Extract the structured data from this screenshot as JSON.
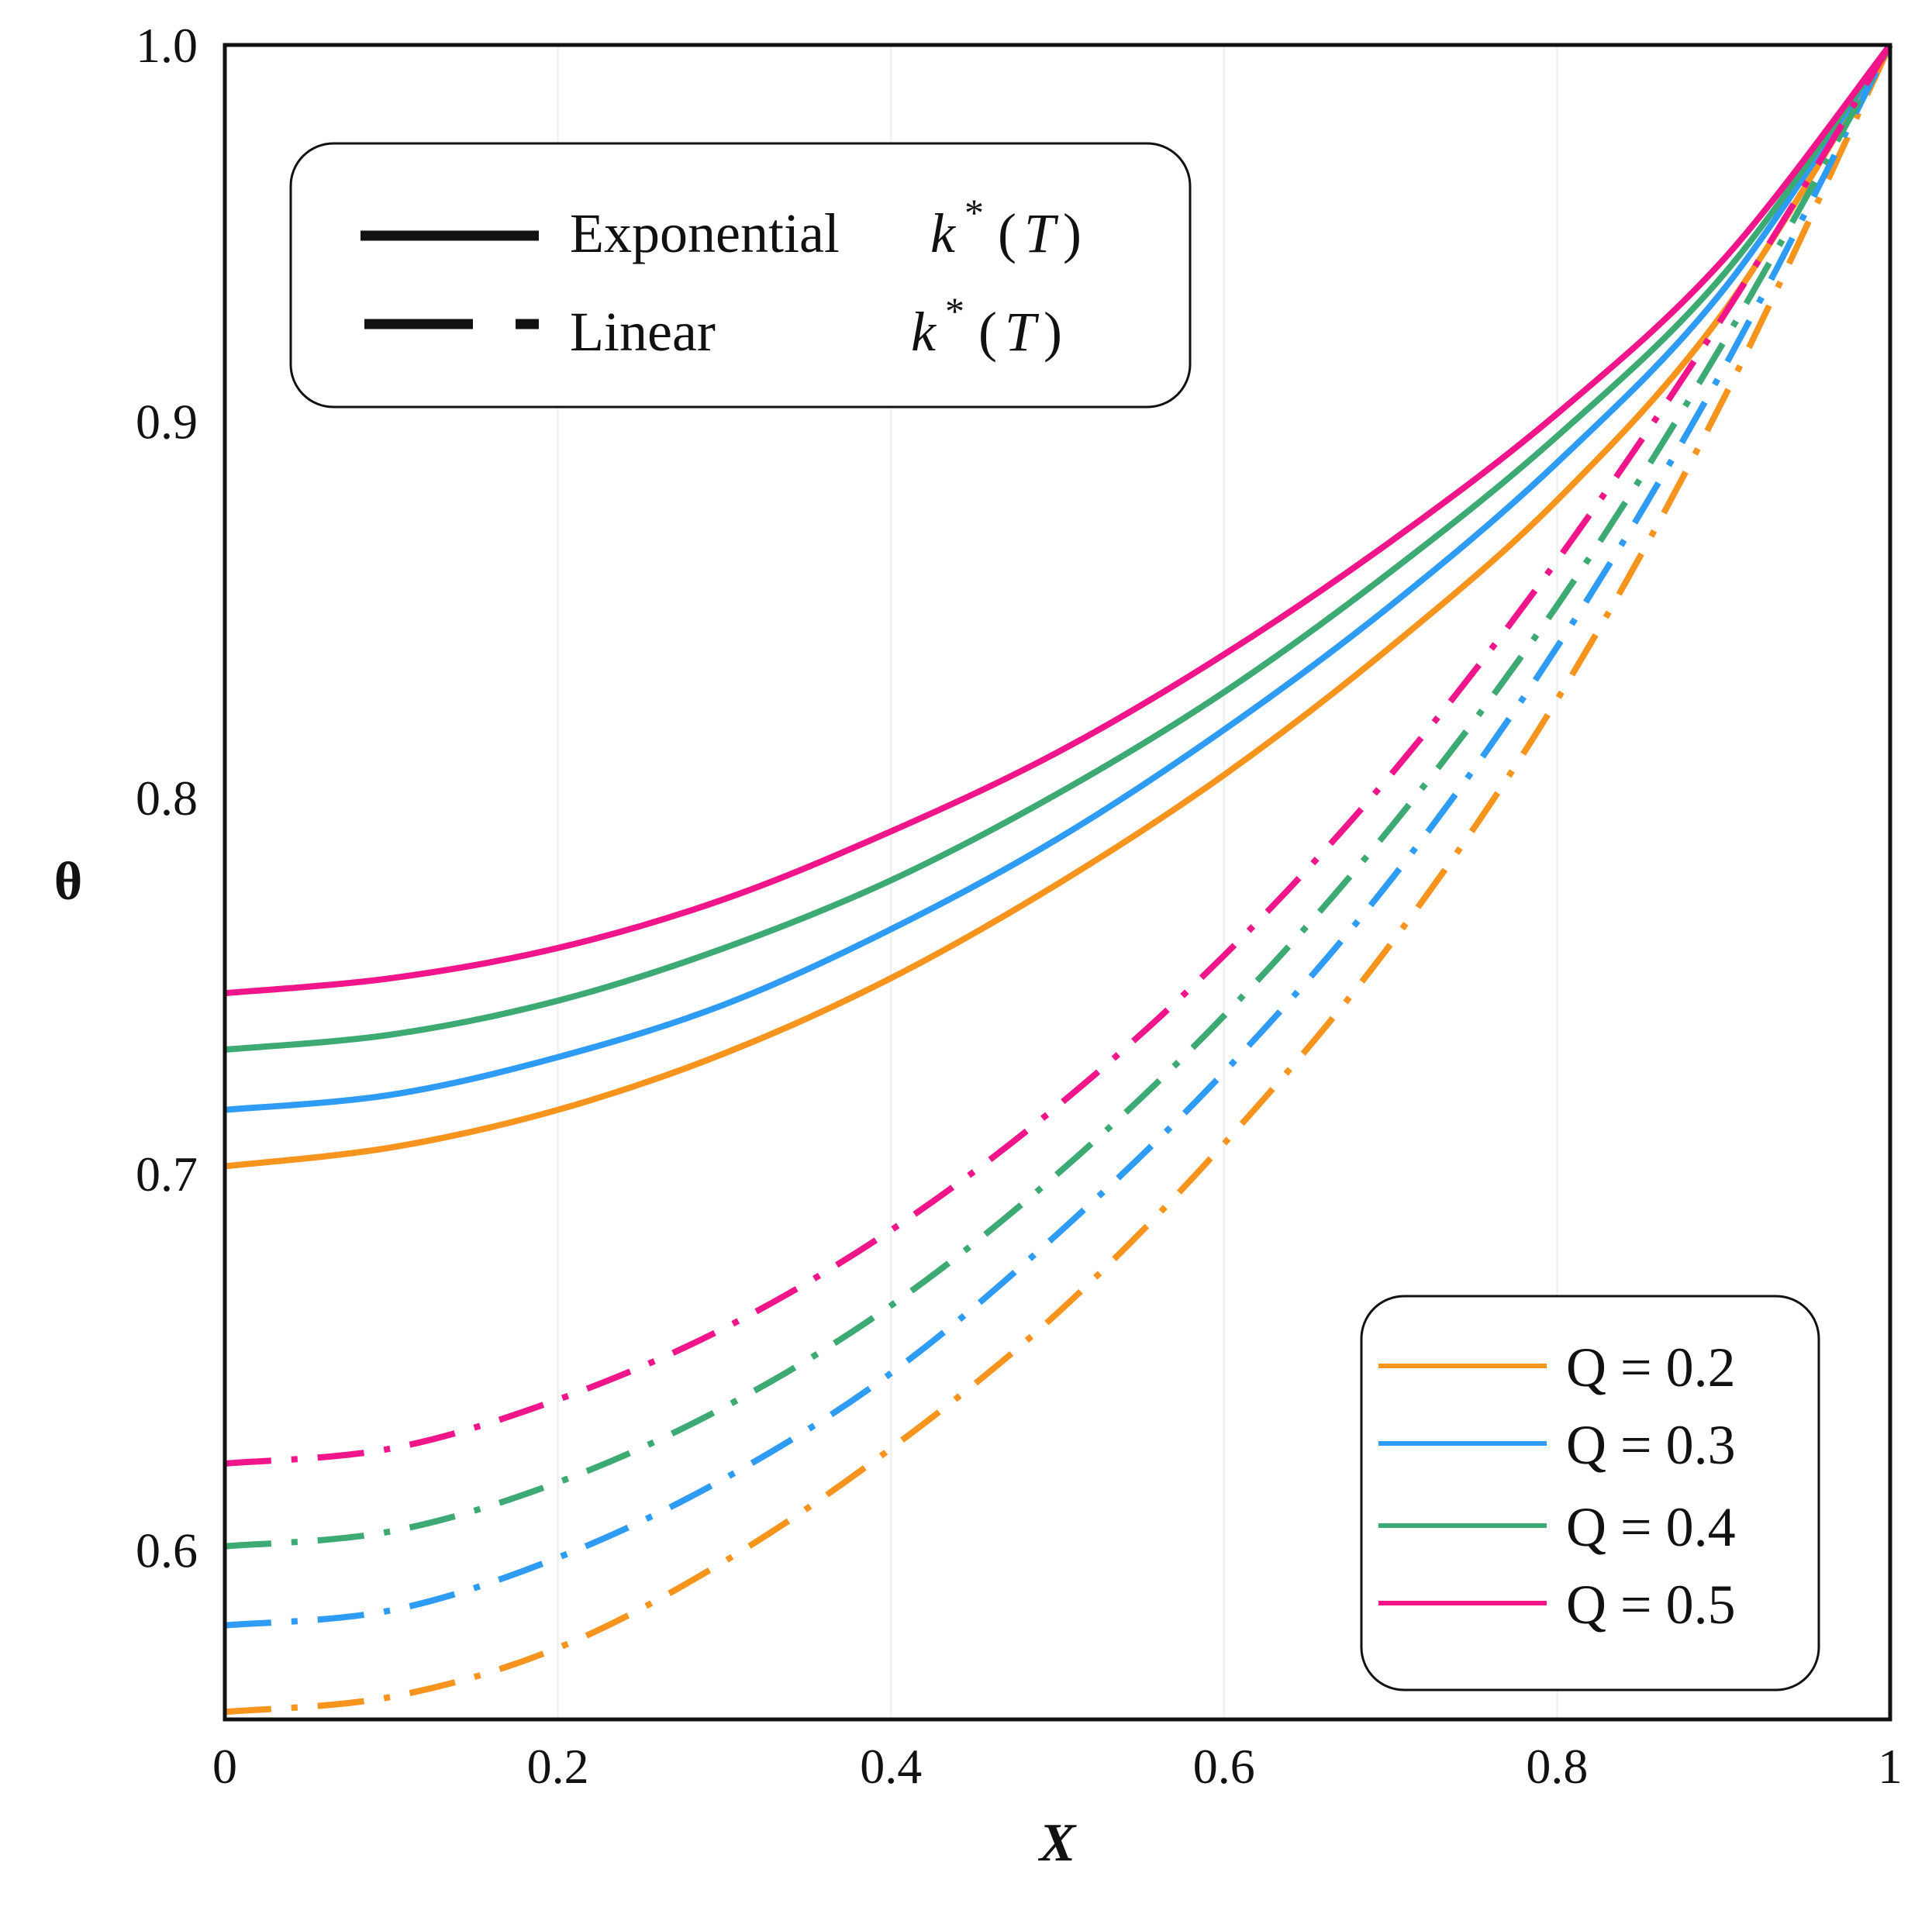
{
  "chart_data": {
    "type": "line",
    "xlabel": "X",
    "ylabel": "θ",
    "xlim": [
      0,
      1
    ],
    "ylim": [
      0.555,
      1.0
    ],
    "x_ticks": [
      0,
      0.2,
      0.4,
      0.6,
      0.8,
      1
    ],
    "x_tick_labels": [
      "0",
      "0.2",
      "0.4",
      "0.6",
      "0.8",
      "1"
    ],
    "y_ticks": [
      0.6,
      0.7,
      0.8,
      0.9,
      1.0
    ],
    "y_tick_labels": [
      "0.6",
      "0.7",
      "0.8",
      "0.9",
      "1.0"
    ],
    "style_legend": {
      "position": "top-left",
      "entries": [
        {
          "label": "Exponential",
          "math": "k",
          "sup": "*",
          "open": "(",
          "arg": "T",
          "close": ")",
          "dash": "solid"
        },
        {
          "label": "Linear",
          "math": "k",
          "sup": "*",
          "open": "(",
          "arg": "T",
          "close": ")",
          "dash": "dash-dot"
        }
      ]
    },
    "color_legend": {
      "position": "bottom-right",
      "entries": [
        {
          "label": "Q = 0.2",
          "color": "#f7941d"
        },
        {
          "label": "Q = 0.3",
          "color": "#2e9bf5"
        },
        {
          "label": "Q = 0.4",
          "color": "#3daa73"
        },
        {
          "label": "Q = 0.5",
          "color": "#f0158a"
        }
      ]
    },
    "x": [
      0,
      0.1,
      0.2,
      0.3,
      0.4,
      0.5,
      0.6,
      0.7,
      0.8,
      0.9,
      1.0
    ],
    "series": [
      {
        "name": "Exponential Q = 0.2",
        "style": "solid",
        "color": "#f7941d",
        "values": [
          0.702,
          0.707,
          0.717,
          0.732,
          0.752,
          0.777,
          0.806,
          0.84,
          0.879,
          0.929,
          1.0
        ]
      },
      {
        "name": "Exponential Q = 0.3",
        "style": "solid",
        "color": "#2e9bf5",
        "values": [
          0.717,
          0.721,
          0.731,
          0.745,
          0.765,
          0.789,
          0.818,
          0.851,
          0.889,
          0.935,
          1.0
        ]
      },
      {
        "name": "Exponential Q = 0.4",
        "style": "solid",
        "color": "#3daa73",
        "values": [
          0.733,
          0.737,
          0.746,
          0.76,
          0.778,
          0.801,
          0.828,
          0.86,
          0.896,
          0.939,
          1.0
        ]
      },
      {
        "name": "Exponential Q = 0.5",
        "style": "solid",
        "color": "#f0158a",
        "values": [
          0.748,
          0.752,
          0.76,
          0.773,
          0.791,
          0.812,
          0.838,
          0.868,
          0.902,
          0.943,
          1.0
        ]
      },
      {
        "name": "Linear Q = 0.2",
        "style": "dash-dot",
        "color": "#f7941d",
        "values": [
          0.557,
          0.561,
          0.574,
          0.597,
          0.627,
          0.663,
          0.708,
          0.761,
          0.826,
          0.906,
          1.0
        ]
      },
      {
        "name": "Linear Q = 0.3",
        "style": "dash-dot",
        "color": "#2e9bf5",
        "values": [
          0.58,
          0.584,
          0.598,
          0.619,
          0.647,
          0.684,
          0.727,
          0.778,
          0.84,
          0.914,
          1.0
        ]
      },
      {
        "name": "Linear Q = 0.4",
        "style": "dash-dot",
        "color": "#3daa73",
        "values": [
          0.601,
          0.605,
          0.618,
          0.638,
          0.665,
          0.7,
          0.742,
          0.792,
          0.851,
          0.921,
          1.0
        ]
      },
      {
        "name": "Linear Q = 0.5",
        "style": "dash-dot",
        "color": "#f0158a",
        "values": [
          0.623,
          0.627,
          0.64,
          0.659,
          0.685,
          0.718,
          0.758,
          0.806,
          0.863,
          0.928,
          1.0
        ]
      }
    ]
  }
}
